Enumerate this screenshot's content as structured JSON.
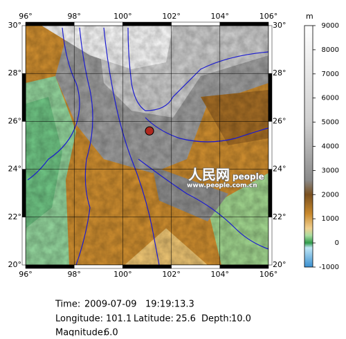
{
  "map": {
    "lon_ticks": [
      {
        "value": 96,
        "label": "96°"
      },
      {
        "value": 98,
        "label": "98°"
      },
      {
        "value": 100,
        "label": "100°"
      },
      {
        "value": 102,
        "label": "102°"
      },
      {
        "value": 104,
        "label": "104°"
      },
      {
        "value": 106,
        "label": "106°"
      }
    ],
    "lat_ticks": [
      {
        "value": 20,
        "label": "20°"
      },
      {
        "value": 22,
        "label": "22°"
      },
      {
        "value": 24,
        "label": "24°"
      },
      {
        "value": 26,
        "label": "26°"
      },
      {
        "value": 28,
        "label": "28°"
      },
      {
        "value": 30,
        "label": "30°"
      }
    ],
    "xlim": [
      96,
      106
    ],
    "ylim": [
      20,
      30
    ],
    "epicenter": {
      "lon": 101.1,
      "lat": 25.6,
      "color": "#b0281e"
    },
    "watermark": {
      "logo": "人民网",
      "brand": "people",
      "url": "www.people.com.cn"
    }
  },
  "colorbar": {
    "unit": "m",
    "ylim": [
      -1000,
      9000
    ],
    "yticks": [
      -1000,
      0,
      1000,
      2000,
      3000,
      4000,
      5000,
      6000,
      7000,
      8000,
      9000
    ]
  },
  "info": {
    "time_label": "Time:",
    "date": "2009-07-09",
    "time": "19:19:13.3",
    "longitude_label": "Longitude:",
    "longitude": "101.1",
    "latitude_label": "Latitude:",
    "latitude": "25.6",
    "depth_label": "Depth:",
    "depth": "10.0",
    "magnitude_label": "Magnitude:",
    "magnitude": "6.0"
  }
}
